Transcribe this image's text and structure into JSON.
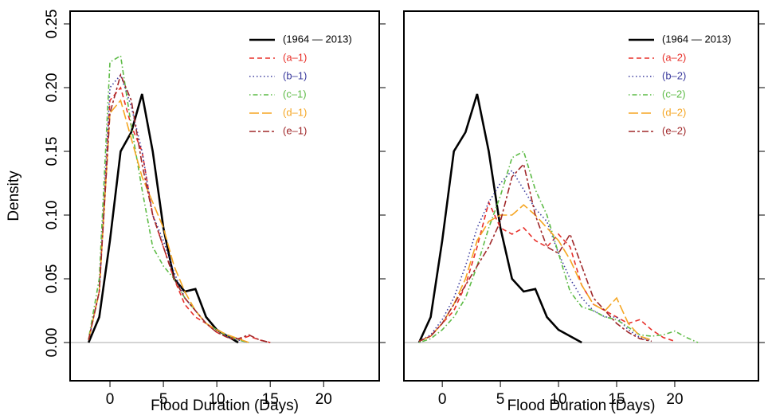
{
  "chart_data": [
    {
      "type": "line",
      "xlabel": "Flood Duration (Days)",
      "ylabel": "Density",
      "x": [
        -2,
        -1,
        0,
        1,
        2,
        3,
        4,
        5,
        6,
        7,
        8,
        9,
        10,
        11,
        12,
        13,
        14,
        15
      ],
      "xlim": [
        -3.73,
        25.2
      ],
      "ylim": [
        -0.03,
        0.26
      ],
      "xticks": [
        0,
        5,
        10,
        15,
        20
      ],
      "yticks": [
        {
          "value": 0,
          "label": "0.00"
        },
        {
          "value": 0.05,
          "label": "0.05"
        },
        {
          "value": 0.1,
          "label": "0.10"
        },
        {
          "value": 0.15,
          "label": "0.15"
        },
        {
          "value": 0.2,
          "label": "0.20"
        },
        {
          "value": 0.25,
          "label": "0.25"
        }
      ],
      "show_ytick_labels": true,
      "zero_line": true,
      "legend": "top-right",
      "series": [
        {
          "name": "(1964 — 2013)",
          "color": "#000000",
          "dash": "solid",
          "values": [
            0,
            0.02,
            0.08,
            0.15,
            0.165,
            0.195,
            0.15,
            0.09,
            0.05,
            0.04,
            0.042,
            0.02,
            0.01,
            0.005,
            0,
            null,
            null,
            null
          ]
        },
        {
          "name": "(a–1)",
          "color": "#e8302a",
          "dash": "dashed",
          "values": [
            0.002,
            0.04,
            0.19,
            0.2,
            0.17,
            0.15,
            0.1,
            0.075,
            0.05,
            0.03,
            0.02,
            0.015,
            0.008,
            0.004,
            0.002,
            0.005,
            0.002,
            0
          ]
        },
        {
          "name": "(b–1)",
          "color": "#3c3c9e",
          "dash": "dotted",
          "values": [
            0.002,
            0.04,
            0.2,
            0.21,
            0.185,
            0.15,
            0.1,
            0.08,
            0.055,
            0.035,
            0.025,
            0.015,
            0.01,
            0.005,
            0.002,
            0,
            null,
            null
          ]
        },
        {
          "name": "(c–1)",
          "color": "#5dbb46",
          "dash": "dotdash",
          "values": [
            0.003,
            0.05,
            0.22,
            0.225,
            0.17,
            0.12,
            0.075,
            0.06,
            0.05,
            0.035,
            0.025,
            0.015,
            0.01,
            0.005,
            0.002,
            0,
            null,
            null
          ]
        },
        {
          "name": "(d–1)",
          "color": "#f5a623",
          "dash": "longdash",
          "values": [
            0.002,
            0.04,
            0.18,
            0.19,
            0.16,
            0.13,
            0.11,
            0.09,
            0.06,
            0.04,
            0.025,
            0.015,
            0.01,
            0.006,
            0.003,
            0,
            null,
            null
          ]
        },
        {
          "name": "(e–1)",
          "color": "#a0282a",
          "dash": "twodash",
          "values": [
            0.002,
            0.04,
            0.18,
            0.21,
            0.19,
            0.14,
            0.1,
            0.075,
            0.05,
            0.035,
            0.025,
            0.015,
            0.008,
            0.004,
            0.003,
            0.006,
            0.002,
            0
          ]
        }
      ]
    },
    {
      "type": "line",
      "xlabel": "Flood Duration (Days)",
      "x": [
        -2,
        -1,
        0,
        1,
        2,
        3,
        4,
        5,
        6,
        7,
        8,
        9,
        10,
        11,
        12,
        13,
        14,
        15,
        16,
        17,
        18,
        19,
        20,
        21,
        22
      ],
      "xlim": [
        -3.3,
        27.2
      ],
      "ylim": [
        -0.03,
        0.26
      ],
      "xticks": [
        0,
        5,
        10,
        15,
        20
      ],
      "yticks": [
        0,
        0.05,
        0.1,
        0.15,
        0.2,
        0.25
      ],
      "show_ytick_labels": false,
      "zero_line": true,
      "legend": "top-right",
      "series": [
        {
          "name": "(1964 — 2013)",
          "color": "#000000",
          "dash": "solid",
          "values": [
            0,
            0.02,
            0.08,
            0.15,
            0.165,
            0.195,
            0.15,
            0.09,
            0.05,
            0.04,
            0.042,
            0.02,
            0.01,
            0.005,
            0,
            null,
            null,
            null,
            null,
            null,
            null,
            null,
            null,
            null,
            null
          ]
        },
        {
          "name": "(a–2)",
          "color": "#e8302a",
          "dash": "dashed",
          "values": [
            0.001,
            0.005,
            0.015,
            0.025,
            0.045,
            0.075,
            0.11,
            0.09,
            0.085,
            0.09,
            0.08,
            0.075,
            0.085,
            0.075,
            0.045,
            0.03,
            0.025,
            0.02,
            0.015,
            0.018,
            0.01,
            0.004,
            0.001,
            null,
            null
          ]
        },
        {
          "name": "(b–2)",
          "color": "#3c3c9e",
          "dash": "dotted",
          "values": [
            0.001,
            0.006,
            0.018,
            0.035,
            0.06,
            0.09,
            0.11,
            0.125,
            0.135,
            0.12,
            0.105,
            0.095,
            0.07,
            0.05,
            0.035,
            0.025,
            0.02,
            0.02,
            0.01,
            0.004,
            0.001,
            null,
            null,
            null,
            null
          ]
        },
        {
          "name": "(c–2)",
          "color": "#5dbb46",
          "dash": "dotdash",
          "values": [
            0,
            0.003,
            0.01,
            0.02,
            0.035,
            0.06,
            0.09,
            0.115,
            0.145,
            0.15,
            0.12,
            0.1,
            0.07,
            0.04,
            0.028,
            0.025,
            0.02,
            0.018,
            0.012,
            0.006,
            0.005,
            0.006,
            0.009,
            0.004,
            0
          ]
        },
        {
          "name": "(d–2)",
          "color": "#f5a623",
          "dash": "longdash",
          "values": [
            0.001,
            0.005,
            0.015,
            0.03,
            0.05,
            0.08,
            0.095,
            0.1,
            0.1,
            0.108,
            0.1,
            0.09,
            0.08,
            0.065,
            0.045,
            0.03,
            0.025,
            0.035,
            0.015,
            0.005,
            0.002,
            null,
            null,
            null,
            null
          ]
        },
        {
          "name": "(e–2)",
          "color": "#a0282a",
          "dash": "twodash",
          "values": [
            0.001,
            0.005,
            0.015,
            0.03,
            0.045,
            0.06,
            0.075,
            0.095,
            0.13,
            0.14,
            0.1,
            0.075,
            0.07,
            0.085,
            0.06,
            0.035,
            0.025,
            0.015,
            0.008,
            0.003,
            0.001,
            null,
            null,
            null,
            null
          ]
        }
      ]
    }
  ]
}
